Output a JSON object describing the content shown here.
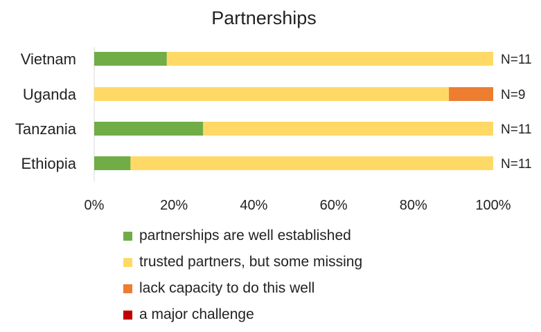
{
  "chart_data": {
    "type": "bar",
    "orientation": "horizontal",
    "stacked": "percent",
    "title": "Partnerships",
    "categories": [
      "Vietnam",
      "Uganda",
      "Tanzania",
      "Ethiopia"
    ],
    "n_labels": [
      "N=11",
      "N=9",
      "N=11",
      "N=11"
    ],
    "series": [
      {
        "name": "partnerships are well established",
        "color": "#70ad47",
        "values": [
          18.2,
          0,
          27.3,
          9.1
        ]
      },
      {
        "name": "trusted partners, but some missing",
        "color": "#ffd966",
        "values": [
          81.8,
          88.9,
          72.7,
          90.9
        ]
      },
      {
        "name": "lack capacity to do this well",
        "color": "#ed7d31",
        "values": [
          0,
          11.1,
          0,
          0
        ]
      },
      {
        "name": "a major challenge",
        "color": "#c00000",
        "values": [
          0,
          0,
          0,
          0
        ]
      }
    ],
    "xticks": [
      "0%",
      "20%",
      "40%",
      "60%",
      "80%",
      "100%"
    ],
    "xlim": [
      0,
      100
    ],
    "grid": false,
    "legend_position": "bottom"
  }
}
